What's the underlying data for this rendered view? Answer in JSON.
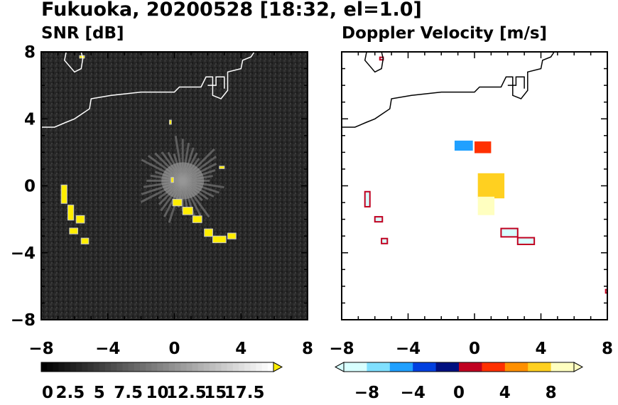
{
  "title": "Fukuoka, 20200528 [18:32, el=1.0]",
  "chart_data": [
    {
      "type": "heatmap",
      "panel": "left",
      "title": "SNR [dB]",
      "xlim": [
        -8,
        8
      ],
      "ylim": [
        -8,
        8
      ],
      "x_ticks": [
        "−8",
        "−4",
        "0",
        "4",
        "8"
      ],
      "y_ticks": [
        "8",
        "4",
        "0",
        "−4",
        "−8"
      ],
      "background": "#2a2a2a",
      "colorbar": {
        "range": [
          0,
          20
        ],
        "ticks": [
          "0",
          "2.5",
          "5",
          "7.5",
          "10",
          "12.5",
          "15",
          "17.5"
        ],
        "colors": [
          "#000000",
          "#ffffff"
        ],
        "extend_color": "#ffee00"
      },
      "echoes": [
        {
          "x": -6.8,
          "y": -0.5,
          "w": 0.35,
          "h": 1.1
        },
        {
          "x": -6.4,
          "y": -1.6,
          "w": 0.35,
          "h": 0.9
        },
        {
          "x": -5.9,
          "y": -2.0,
          "w": 0.5,
          "h": 0.45
        },
        {
          "x": -6.3,
          "y": -2.7,
          "w": 0.5,
          "h": 0.35
        },
        {
          "x": -5.6,
          "y": -3.3,
          "w": 0.45,
          "h": 0.35
        },
        {
          "x": -0.1,
          "y": -1.0,
          "w": 0.55,
          "h": 0.4
        },
        {
          "x": 0.5,
          "y": -1.5,
          "w": 0.6,
          "h": 0.45
        },
        {
          "x": 1.1,
          "y": -2.0,
          "w": 0.55,
          "h": 0.4
        },
        {
          "x": 1.8,
          "y": -2.8,
          "w": 0.5,
          "h": 0.45
        },
        {
          "x": 2.3,
          "y": -3.2,
          "w": 0.8,
          "h": 0.4
        },
        {
          "x": 3.2,
          "y": -3.0,
          "w": 0.5,
          "h": 0.35
        },
        {
          "x": 2.7,
          "y": 1.1,
          "w": 0.3,
          "h": 0.15
        },
        {
          "x": -0.3,
          "y": 3.8,
          "w": 0.12,
          "h": 0.25
        },
        {
          "x": -5.7,
          "y": 7.7,
          "w": 0.3,
          "h": 0.15
        },
        {
          "x": -0.2,
          "y": 0.35,
          "w": 0.15,
          "h": 0.3
        }
      ],
      "clutter_center": [
        0.5,
        0.3
      ]
    },
    {
      "type": "heatmap",
      "panel": "right",
      "title": "Doppler Velocity [m/s]",
      "xlim": [
        -8,
        8
      ],
      "ylim": [
        -8,
        8
      ],
      "x_ticks": [
        "−8",
        "−4",
        "0",
        "4",
        "8"
      ],
      "y_ticks": [
        "8",
        "4",
        "0",
        "−4",
        "−8"
      ],
      "background": "#ffffff",
      "colorbar": {
        "range": [
          -10,
          10
        ],
        "ticks": [
          "−8",
          "−4",
          "0",
          "4",
          "8"
        ],
        "colors_neg": [
          "#d8ffff",
          "#80e0ff",
          "#20a0ff",
          "#0040e0",
          "#001080"
        ],
        "colors_pos": [
          "#c00020",
          "#ff3000",
          "#ff9000",
          "#ffd020",
          "#ffffc0"
        ]
      },
      "regions": [
        {
          "x": -1.2,
          "y": 2.4,
          "w": 1.1,
          "h": 0.6,
          "v": -6
        },
        {
          "x": 0.0,
          "y": 2.3,
          "w": 1.0,
          "h": 0.7,
          "v": 3
        },
        {
          "x": 0.2,
          "y": 0.0,
          "w": 1.6,
          "h": 1.5,
          "v": 7
        },
        {
          "x": 0.2,
          "y": -1.2,
          "w": 1.0,
          "h": 1.1,
          "v": 9
        },
        {
          "x": -6.6,
          "y": -0.8,
          "w": 0.3,
          "h": 0.9,
          "v": -8
        },
        {
          "x": -6.0,
          "y": -2.0,
          "w": 0.45,
          "h": 0.3,
          "v": -8
        },
        {
          "x": -5.6,
          "y": -3.3,
          "w": 0.35,
          "h": 0.3,
          "v": -8
        },
        {
          "x": 1.6,
          "y": -2.8,
          "w": 1.0,
          "h": 0.5,
          "v": -8
        },
        {
          "x": 2.6,
          "y": -3.3,
          "w": 1.0,
          "h": 0.4,
          "v": -8
        },
        {
          "x": -5.7,
          "y": 7.6,
          "w": 0.2,
          "h": 0.15,
          "v": -8
        },
        {
          "x": 7.9,
          "y": -6.3,
          "w": 0.15,
          "h": 0.2,
          "v": -8
        }
      ]
    }
  ]
}
